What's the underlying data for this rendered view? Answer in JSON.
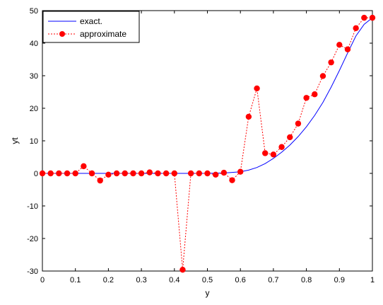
{
  "chart_data": {
    "type": "line",
    "title": "",
    "xlabel": "y",
    "ylabel": "yt",
    "xlim": [
      0,
      1
    ],
    "ylim": [
      -30,
      50
    ],
    "xticks": [
      0,
      0.1,
      0.2,
      0.3,
      0.4,
      0.5,
      0.6,
      0.7,
      0.8,
      0.9,
      1
    ],
    "yticks": [
      -30,
      -20,
      -10,
      0,
      10,
      20,
      30,
      40,
      50
    ],
    "grid": false,
    "legend_position": "top-left",
    "series": [
      {
        "name": "exact.",
        "style": "solid-line",
        "color": "#0000ff",
        "x": [
          0,
          0.1,
          0.2,
          0.3,
          0.4,
          0.5,
          0.55,
          0.6,
          0.625,
          0.65,
          0.675,
          0.7,
          0.725,
          0.75,
          0.775,
          0.8,
          0.825,
          0.85,
          0.875,
          0.9,
          0.925,
          0.95,
          0.975,
          1.0
        ],
        "y": [
          0,
          0,
          0,
          0,
          0,
          0,
          0.1,
          0.5,
          1.0,
          1.8,
          3.0,
          4.6,
          6.5,
          8.7,
          11.3,
          14.3,
          17.8,
          21.8,
          26.5,
          31.6,
          37.0,
          42.2,
          45.8,
          47.8
        ]
      },
      {
        "name": "approximate",
        "style": "dotted-line-with-filled-circles",
        "color": "#ff0000",
        "x": [
          0,
          0.025,
          0.05,
          0.075,
          0.1,
          0.125,
          0.15,
          0.175,
          0.2,
          0.225,
          0.25,
          0.275,
          0.3,
          0.325,
          0.35,
          0.375,
          0.4,
          0.425,
          0.45,
          0.475,
          0.5,
          0.525,
          0.55,
          0.575,
          0.6,
          0.625,
          0.65,
          0.675,
          0.7,
          0.725,
          0.75,
          0.775,
          0.8,
          0.825,
          0.85,
          0.875,
          0.9,
          0.925,
          0.95,
          0.975,
          1.0
        ],
        "y": [
          0,
          0,
          0,
          0,
          0,
          2.2,
          0,
          -2.2,
          -0.4,
          0,
          0,
          0,
          0,
          0.3,
          0,
          0,
          0,
          -29.6,
          0,
          0,
          0,
          -0.4,
          0.2,
          -2.1,
          0.5,
          17.4,
          26.1,
          6.2,
          5.8,
          8.1,
          11.1,
          15.3,
          23.2,
          24.3,
          29.9,
          34.1,
          39.5,
          38.1,
          44.6,
          47.8,
          47.8
        ]
      }
    ]
  }
}
